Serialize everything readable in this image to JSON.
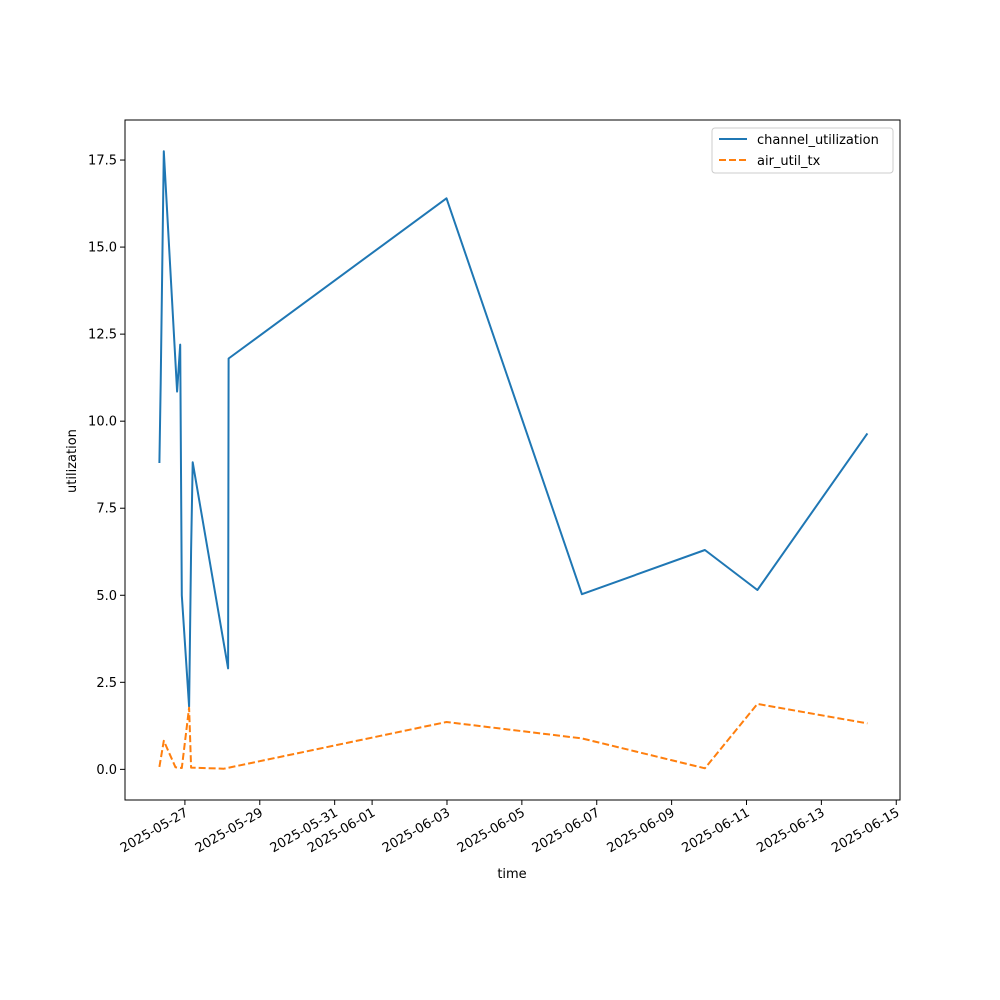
{
  "chart_data": {
    "type": "line",
    "xlabel": "time",
    "ylabel": "utilization",
    "xlim": [
      "2025-05-25T09:36",
      "2025-06-15T02:24"
    ],
    "ylim": [
      -0.88,
      18.65
    ],
    "x_ticks": [
      "2025-05-27",
      "2025-05-29",
      "2025-05-31",
      "2025-06-01",
      "2025-06-03",
      "2025-06-05",
      "2025-06-07",
      "2025-06-09",
      "2025-06-11",
      "2025-06-13",
      "2025-06-15"
    ],
    "y_ticks": [
      "0.0",
      "2.5",
      "5.0",
      "7.5",
      "10.0",
      "12.5",
      "15.0",
      "17.5"
    ],
    "grid": false,
    "legend_position": "top-right",
    "series": [
      {
        "name": "channel_utilization",
        "color": "#1f77b4",
        "style": "solid",
        "points": [
          {
            "x": "2025-05-26T07:40",
            "y": 8.8
          },
          {
            "x": "2025-05-26T08:30",
            "y": 11.1
          },
          {
            "x": "2025-05-26T10:30",
            "y": 17.75
          },
          {
            "x": "2025-05-26T19:00",
            "y": 10.85
          },
          {
            "x": "2025-05-26T21:00",
            "y": 12.2
          },
          {
            "x": "2025-05-26T22:00",
            "y": 5.0
          },
          {
            "x": "2025-05-27T02:40",
            "y": 1.8
          },
          {
            "x": "2025-05-27T04:00",
            "y": 6.3
          },
          {
            "x": "2025-05-27T05:00",
            "y": 8.82
          },
          {
            "x": "2025-05-28T03:40",
            "y": 2.9
          },
          {
            "x": "2025-05-28T04:00",
            "y": 11.8
          },
          {
            "x": "2025-06-02T23:40",
            "y": 16.4
          },
          {
            "x": "2025-06-06T14:30",
            "y": 5.03
          },
          {
            "x": "2025-06-09T21:20",
            "y": 6.3
          },
          {
            "x": "2025-06-11T07:00",
            "y": 5.15
          },
          {
            "x": "2025-06-14T05:30",
            "y": 9.65
          }
        ]
      },
      {
        "name": "air_util_tx",
        "color": "#ff7f0e",
        "style": "dashed",
        "points": [
          {
            "x": "2025-05-26T07:40",
            "y": 0.07
          },
          {
            "x": "2025-05-26T10:30",
            "y": 0.82
          },
          {
            "x": "2025-05-26T18:00",
            "y": 0.06
          },
          {
            "x": "2025-05-26T22:00",
            "y": 0.04
          },
          {
            "x": "2025-05-27T02:40",
            "y": 1.77
          },
          {
            "x": "2025-05-27T04:00",
            "y": 0.05
          },
          {
            "x": "2025-05-28T01:00",
            "y": 0.02
          },
          {
            "x": "2025-06-02T23:40",
            "y": 1.36
          },
          {
            "x": "2025-06-06T14:30",
            "y": 0.89
          },
          {
            "x": "2025-06-09T21:20",
            "y": 0.03
          },
          {
            "x": "2025-06-11T07:00",
            "y": 1.88
          },
          {
            "x": "2025-06-14T05:30",
            "y": 1.32
          }
        ]
      }
    ]
  }
}
